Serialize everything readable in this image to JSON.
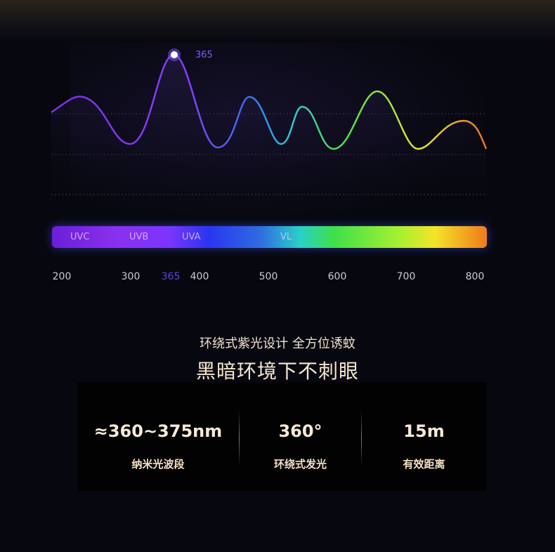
{
  "spectrum": {
    "peak_label": "365",
    "bands": [
      "UVC",
      "UVB",
      "UVA",
      "VL"
    ],
    "ticks": [
      "200",
      "300",
      "365",
      "400",
      "500",
      "600",
      "700",
      "800"
    ],
    "highlight_tick": "365",
    "colors": {
      "accent": "#7d5cff",
      "start": "#6a1fd8",
      "end": "#f07a1c"
    }
  },
  "headline": {
    "subtitle": "环绕式紫光设计 全方位诱蚊",
    "title": "黑暗环境下不刺眼"
  },
  "stats": [
    {
      "value": "≈360~375nm",
      "label": "纳米光波段"
    },
    {
      "value": "360°",
      "label": "环绕式发光"
    },
    {
      "value": "15m",
      "label": "有效距离"
    }
  ]
}
